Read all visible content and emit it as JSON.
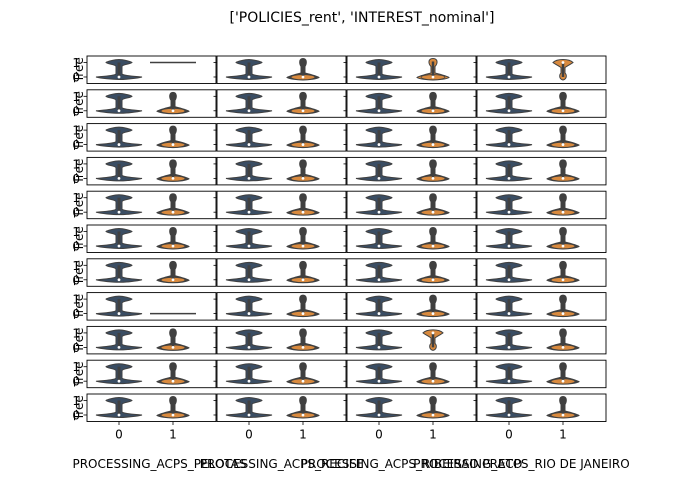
{
  "figure": {
    "title": "['POLICIES_rent', 'INTEREST_nominal']"
  },
  "colors": {
    "series0": "#3a4d63",
    "series1": "#d98a3e",
    "outline": "#404040",
    "median": "#ffffff"
  },
  "chart_data": {
    "type": "violin-grid",
    "rows": 11,
    "cols": 4,
    "ylabel": "Tree",
    "yticks": [
      0,
      1
    ],
    "ylim": [
      -0.45,
      1.45
    ],
    "xticks": [
      "0",
      "1"
    ],
    "column_xlabels": [
      "PROCESSING_ACPS_PELOTAS",
      "PROCESSING_ACPS_RECIFE",
      "PROCESSING_ACPS_RIBEIRAO PRETO",
      "PROCESSING_ACPS_RIO DE JANEIRO"
    ],
    "special_cells": [
      {
        "row": 0,
        "col": 0,
        "series": 1,
        "shape": "line",
        "value": 1
      },
      {
        "row": 0,
        "col": 2,
        "series": 1,
        "shape": "orange-both"
      },
      {
        "row": 0,
        "col": 3,
        "series": 1,
        "shape": "orange-top"
      },
      {
        "row": 7,
        "col": 0,
        "series": 1,
        "shape": "line",
        "value": 0
      },
      {
        "row": 8,
        "col": 2,
        "series": 1,
        "shape": "orange-top"
      }
    ]
  }
}
